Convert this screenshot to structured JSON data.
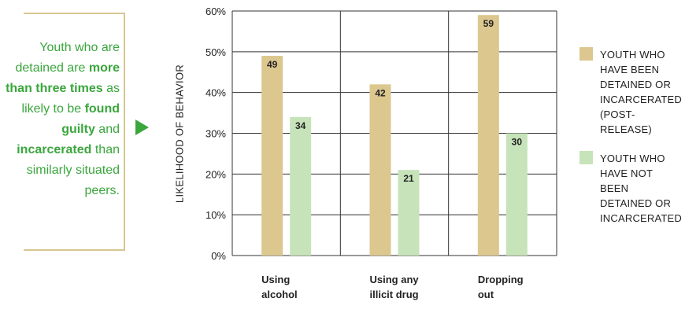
{
  "callout": {
    "segments": [
      {
        "text": "Youth who are detained are ",
        "bold": false
      },
      {
        "text": "more than three times",
        "bold": true
      },
      {
        "text": " as likely to be ",
        "bold": false
      },
      {
        "text": "found guilty",
        "bold": true
      },
      {
        "text": " and ",
        "bold": false
      },
      {
        "text": "incarcerated",
        "bold": true
      },
      {
        "text": " than similarly situated peers.",
        "bold": false
      }
    ],
    "color": "#3aa63c"
  },
  "colors": {
    "detained": "#dcc78f",
    "not_detained": "#c6e3b9",
    "grid": "#333333"
  },
  "chart_data": {
    "type": "bar",
    "title": "",
    "xlabel": "",
    "ylabel": "LIKELIHOOD OF BEHAVIOR",
    "ylim": [
      0,
      60
    ],
    "yticks": [
      "0%",
      "10%",
      "20%",
      "30%",
      "40%",
      "50%",
      "60%"
    ],
    "categories": [
      [
        "Using",
        "alcohol"
      ],
      [
        "Using any",
        "illicit drug"
      ],
      [
        "Dropping",
        "out"
      ]
    ],
    "series": [
      {
        "name": "YOUTH WHO HAVE BEEN DETAINED OR INCARCERATED (POST-RELEASE)",
        "values": [
          49,
          42,
          59
        ]
      },
      {
        "name": "YOUTH WHO HAVE NOT BEEN DETAINED OR INCARCERATED",
        "values": [
          34,
          21,
          30
        ]
      }
    ],
    "grid": true,
    "legend_position": "right"
  }
}
